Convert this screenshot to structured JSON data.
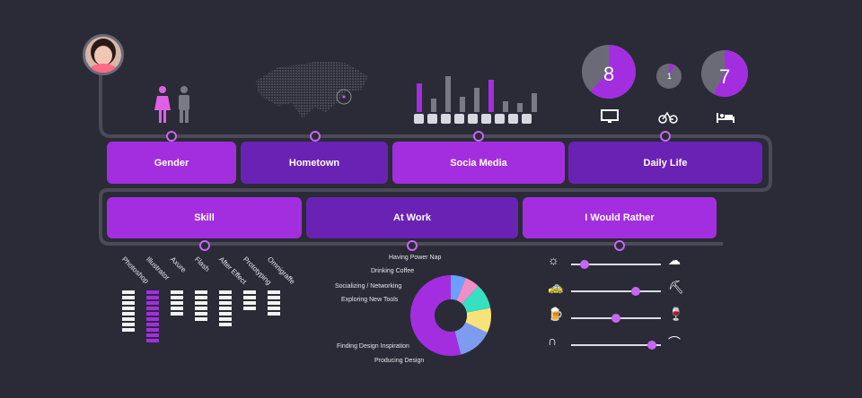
{
  "top_row": [
    {
      "label": "Gender"
    },
    {
      "label": "Hometown"
    },
    {
      "label": "Socia Media"
    },
    {
      "label": "Daily Life"
    }
  ],
  "bottom_row": [
    {
      "label": "Skill"
    },
    {
      "label": "At Work"
    },
    {
      "label": "I Would Rather"
    }
  ],
  "daily_life": {
    "devices": [
      {
        "value": "8",
        "icon": "monitor-icon",
        "fraction": 0.62
      },
      {
        "value": "1",
        "icon": "bicycle-icon",
        "fraction": 0.08
      },
      {
        "value": "7",
        "icon": "bed-icon",
        "fraction": 0.58
      }
    ]
  },
  "social_media": {
    "icons": [
      "dribbble-icon",
      "facebook-like-icon",
      "f-icon",
      "behance-icon",
      "google-plus-icon",
      "linkedin-icon",
      "vimeo-icon",
      "twitter-icon",
      "pinterest-icon"
    ],
    "bars": [
      {
        "height": 0.65,
        "highlight": true
      },
      {
        "height": 0.3,
        "highlight": false
      },
      {
        "height": 0.8,
        "highlight": false
      },
      {
        "height": 0.35,
        "highlight": false
      },
      {
        "height": 0.55,
        "highlight": false
      },
      {
        "height": 0.72,
        "highlight": true
      },
      {
        "height": 0.25,
        "highlight": false
      },
      {
        "height": 0.2,
        "highlight": false
      },
      {
        "height": 0.42,
        "highlight": false
      }
    ]
  },
  "skills": [
    {
      "label": "Photoshop",
      "level": 8,
      "highlight": false
    },
    {
      "label": "Illustrator",
      "level": 10,
      "highlight": true
    },
    {
      "label": "Axure",
      "level": 5,
      "highlight": false
    },
    {
      "label": "Flash",
      "level": 6,
      "highlight": false
    },
    {
      "label": "After Effect",
      "level": 7,
      "highlight": false
    },
    {
      "label": "Prototyping",
      "level": 4,
      "highlight": false
    },
    {
      "label": "Omnigraffe",
      "level": 5,
      "highlight": false
    }
  ],
  "chart_data": {
    "type": "pie",
    "labels": [
      "Having Power Nap",
      "Drinking Coffee",
      "Socializing / Networking",
      "Exploring New Tools",
      "Finding Design Inspiration",
      "Producing Design"
    ],
    "values": [
      6,
      6,
      10,
      10,
      14,
      54
    ],
    "colors": [
      "#6aa0ff",
      "#ef8ec7",
      "#36e0c0",
      "#f8e27a",
      "#7d9cf0",
      "#a32ee0"
    ]
  },
  "rather": [
    {
      "left_icon": "sun-icon",
      "right_icon": "cloud-rain-icon",
      "value": 0.15
    },
    {
      "left_icon": "taxi-icon",
      "right_icon": "hiking-icon",
      "value": 0.72
    },
    {
      "left_icon": "beer-icon",
      "right_icon": "wine-glass-icon",
      "value": 0.5
    },
    {
      "left_icon": "flipflop-icon",
      "right_icon": "heel-icon",
      "value": 0.9
    }
  ]
}
